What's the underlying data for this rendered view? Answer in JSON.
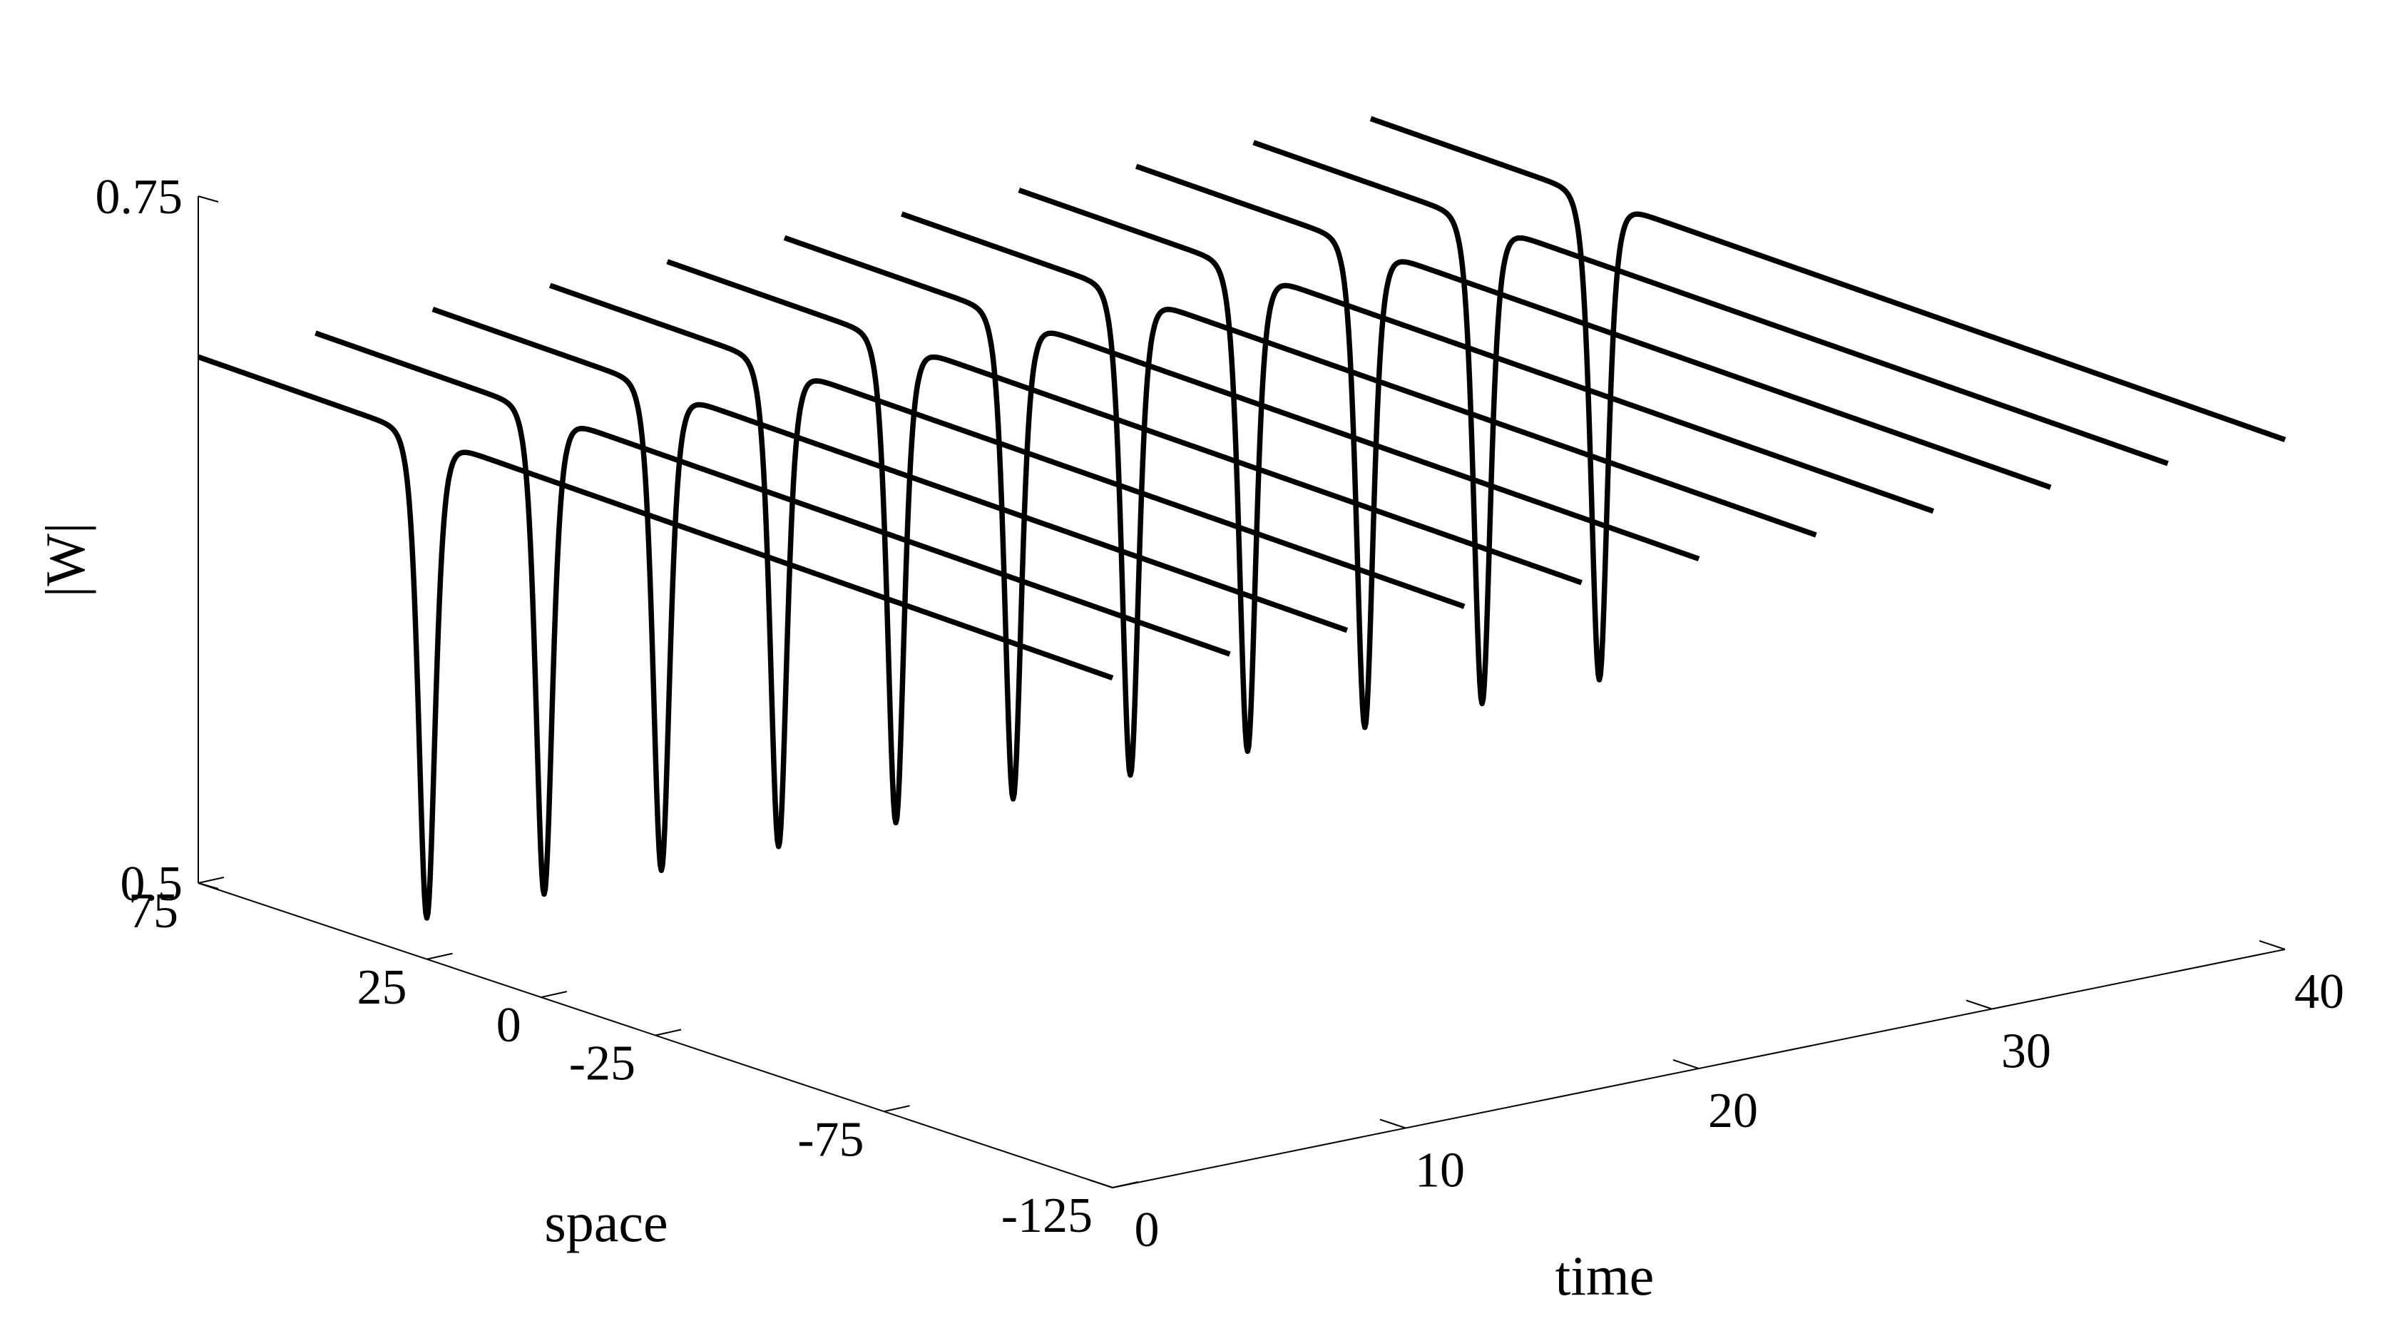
{
  "chart_data": {
    "type": "line",
    "projection": "3d-waterfall",
    "title": "",
    "xlabel": "space",
    "ylabel": "time",
    "zlabel": "|W|",
    "xlim": [
      -125,
      75
    ],
    "ylim": [
      0,
      40
    ],
    "zlim": [
      0.5,
      0.75
    ],
    "x_ticks": [
      75,
      25,
      0,
      -25,
      -75,
      -125
    ],
    "y_ticks": [
      0,
      10,
      20,
      30,
      40
    ],
    "z_ticks": [
      0.5,
      0.75
    ],
    "x_tick_labels": [
      "75",
      "25",
      "0",
      "-25",
      "-75",
      "-125"
    ],
    "y_tick_labels": [
      "0",
      "10",
      "20",
      "30",
      "40"
    ],
    "z_tick_labels": [
      "0.5",
      "0.75"
    ],
    "grid": false,
    "line_color": "#000000",
    "background": "#ffffff",
    "series": [
      {
        "time": 0,
        "dip_center": 25,
        "dip_min": 0.515,
        "baseline": 0.69
      },
      {
        "time": 4,
        "dip_center": 25,
        "dip_min": 0.515,
        "baseline": 0.69
      },
      {
        "time": 8,
        "dip_center": 25,
        "dip_min": 0.515,
        "baseline": 0.69
      },
      {
        "time": 12,
        "dip_center": 25,
        "dip_min": 0.515,
        "baseline": 0.69
      },
      {
        "time": 16,
        "dip_center": 25,
        "dip_min": 0.515,
        "baseline": 0.69
      },
      {
        "time": 20,
        "dip_center": 25,
        "dip_min": 0.515,
        "baseline": 0.69
      },
      {
        "time": 24,
        "dip_center": 25,
        "dip_min": 0.515,
        "baseline": 0.69
      },
      {
        "time": 28,
        "dip_center": 25,
        "dip_min": 0.515,
        "baseline": 0.69
      },
      {
        "time": 32,
        "dip_center": 25,
        "dip_min": 0.515,
        "baseline": 0.69
      },
      {
        "time": 36,
        "dip_center": 25,
        "dip_min": 0.515,
        "baseline": 0.69
      },
      {
        "time": 40,
        "dip_center": 25,
        "dip_min": 0.515,
        "baseline": 0.69
      }
    ]
  }
}
